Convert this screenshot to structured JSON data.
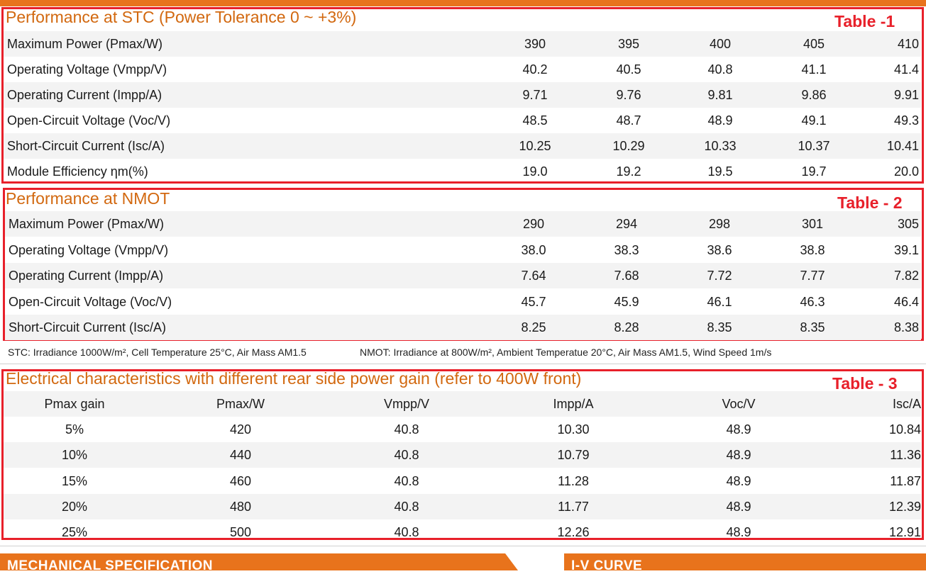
{
  "table1": {
    "title": "Performance at STC (Power Tolerance 0 ~ +3%)",
    "tag": "Table -1",
    "rows": [
      {
        "label": "Maximum Power (Pmax/W)",
        "values": [
          "390",
          "395",
          "400",
          "405",
          "410"
        ]
      },
      {
        "label": "Operating Voltage (Vmpp/V)",
        "values": [
          "40.2",
          "40.5",
          "40.8",
          "41.1",
          "41.4"
        ]
      },
      {
        "label": "Operating Current (Impp/A)",
        "values": [
          "9.71",
          "9.76",
          "9.81",
          "9.86",
          "9.91"
        ]
      },
      {
        "label": "Open-Circuit Voltage (Voc/V)",
        "values": [
          "48.5",
          "48.7",
          "48.9",
          "49.1",
          "49.3"
        ]
      },
      {
        "label": "Short-Circuit Current (Isc/A)",
        "values": [
          "10.25",
          "10.29",
          "10.33",
          "10.37",
          "10.41"
        ]
      },
      {
        "label": "Module Efficiency ηm(%)",
        "values": [
          "19.0",
          "19.2",
          "19.5",
          "19.7",
          "20.0"
        ]
      }
    ]
  },
  "table2": {
    "title": "Performance at NMOT",
    "tag": "Table - 2",
    "rows": [
      {
        "label": "Maximum Power (Pmax/W)",
        "values": [
          "290",
          "294",
          "298",
          "301",
          "305"
        ]
      },
      {
        "label": "Operating Voltage (Vmpp/V)",
        "values": [
          "38.0",
          "38.3",
          "38.6",
          "38.8",
          "39.1"
        ]
      },
      {
        "label": "Operating Current (Impp/A)",
        "values": [
          "7.64",
          "7.68",
          "7.72",
          "7.77",
          "7.82"
        ]
      },
      {
        "label": "Open-Circuit Voltage (Voc/V)",
        "values": [
          "45.7",
          "45.9",
          "46.1",
          "46.3",
          "46.4"
        ]
      },
      {
        "label": "Short-Circuit Current (Isc/A)",
        "values": [
          "8.25",
          "8.28",
          "8.35",
          "8.35",
          "8.38"
        ]
      }
    ]
  },
  "notes": {
    "stc": "STC: Irradiance 1000W/m², Cell Temperature 25°C, Air Mass AM1.5",
    "nmot": "NMOT: Irradiance at 800W/m², Ambient Temperatue 20°C, Air Mass AM1.5, Wind Speed 1m/s"
  },
  "table3": {
    "title": "Electrical characteristics with different rear side power gain (refer to 400W front)",
    "tag": "Table - 3",
    "headers": [
      "Pmax gain",
      "Pmax/W",
      "Vmpp/V",
      "Impp/A",
      "Voc/V",
      "Isc/A"
    ],
    "rows": [
      [
        "5%",
        "420",
        "40.8",
        "10.30",
        "48.9",
        "10.84"
      ],
      [
        "10%",
        "440",
        "40.8",
        "10.79",
        "48.9",
        "11.36"
      ],
      [
        "15%",
        "460",
        "40.8",
        "11.28",
        "48.9",
        "11.87"
      ],
      [
        "20%",
        "480",
        "40.8",
        "11.77",
        "48.9",
        "12.39"
      ],
      [
        "25%",
        "500",
        "40.8",
        "12.26",
        "48.9",
        "12.91"
      ]
    ]
  },
  "bottom": {
    "mechanical": "MECHANICAL SPECIFICATION",
    "iv": "I-V CURVE"
  },
  "colors": {
    "accent": "#e8731c",
    "title": "#d2680f",
    "highlight": "#e8202a"
  }
}
